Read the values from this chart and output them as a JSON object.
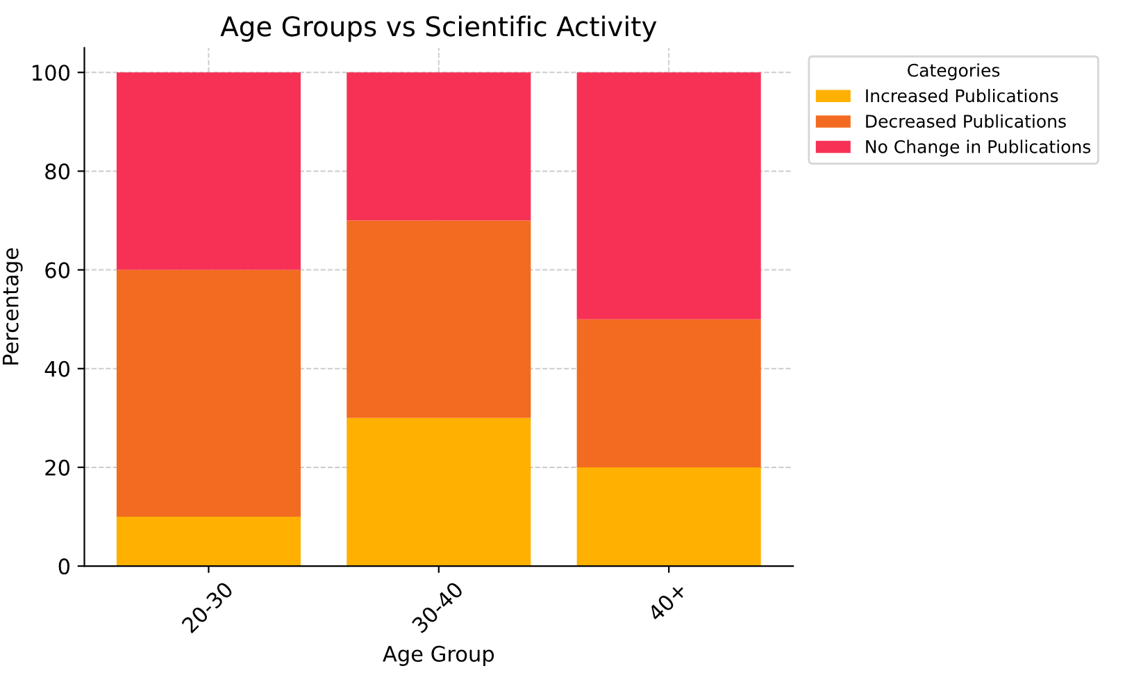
{
  "chart_data": {
    "type": "bar",
    "title": "Age Groups vs Scientific Activity",
    "xlabel": "Age Group",
    "ylabel": "Percentage",
    "legend_title": "Categories",
    "categories": [
      "20-30",
      "30-40",
      "40+"
    ],
    "stacked": true,
    "series": [
      {
        "name": "Increased Publications",
        "color": "#ffb000",
        "values": [
          10,
          30,
          20
        ]
      },
      {
        "name": "Decreased Publications",
        "color": "#f26b21",
        "values": [
          50,
          40,
          30
        ]
      },
      {
        "name": "No Change in Publications",
        "color": "#f73155",
        "values": [
          40,
          30,
          50
        ]
      }
    ],
    "ylim": [
      0,
      105
    ],
    "yticks": [
      0,
      20,
      40,
      60,
      80,
      100
    ],
    "grid": true,
    "legend": "top right"
  }
}
